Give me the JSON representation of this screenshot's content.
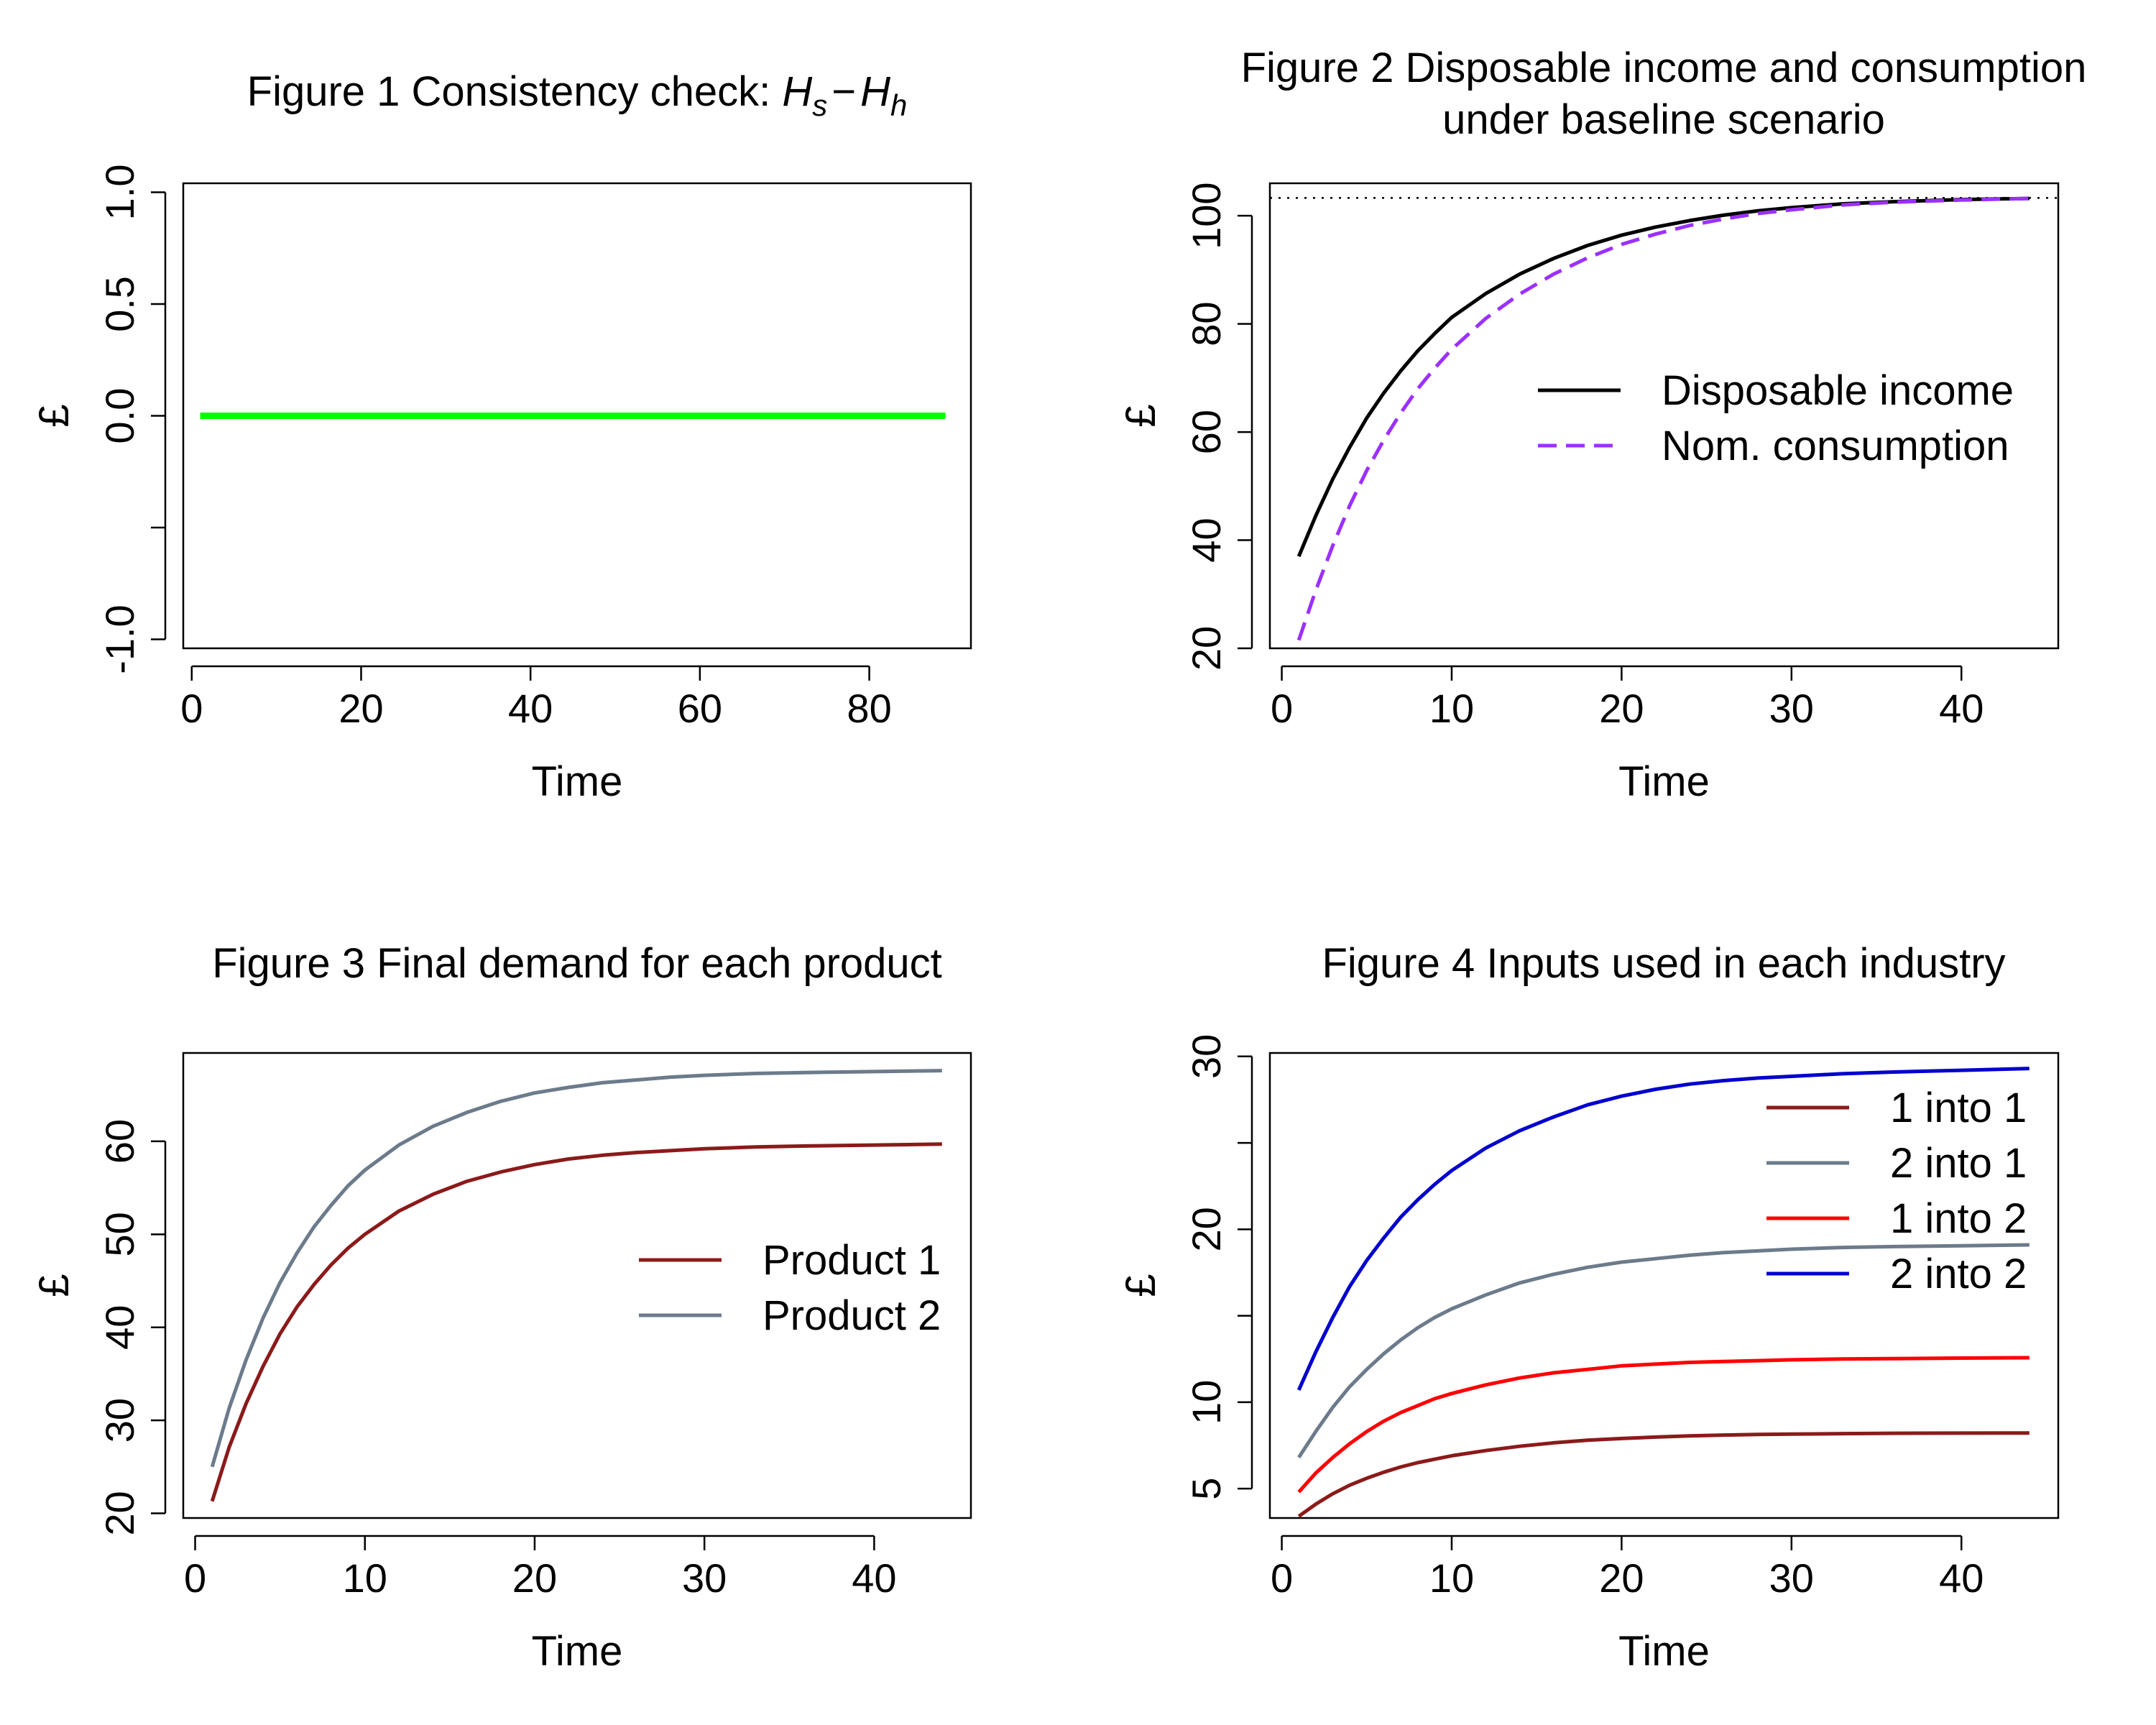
{
  "chart_data": [
    {
      "id": "fig1",
      "type": "line",
      "title": "Figure 1  Consistency check: ",
      "title_math": {
        "base1": "H",
        "sub1": "s",
        "op": "−",
        "base2": "H",
        "sub2": "h"
      },
      "xlabel": "Time",
      "ylabel": "£",
      "xlim": [
        -1,
        92
      ],
      "ylim": [
        -1.04,
        1.04
      ],
      "xticks": [
        0,
        20,
        40,
        60,
        80
      ],
      "yticks": [
        -1.0,
        -0.5,
        0.0,
        0.5,
        1.0
      ],
      "yticklabels": [
        "-1.0",
        "",
        "0.0",
        "0.5",
        "1.0"
      ],
      "legend": null,
      "series": [
        {
          "color": "#00ff00",
          "dash": "",
          "width": 9,
          "x": [
            1,
            89
          ],
          "y": [
            0,
            0
          ]
        }
      ]
    },
    {
      "id": "fig2",
      "type": "line",
      "title_lines": [
        "Figure 2  Disposable income and consumption",
        "under baseline scenario"
      ],
      "xlabel": "Time",
      "ylabel": "£",
      "xlim": [
        -0.7,
        45.7
      ],
      "ylim": [
        20,
        106
      ],
      "xticks": [
        0,
        10,
        20,
        30,
        40
      ],
      "yticks": [
        20,
        40,
        60,
        80,
        100
      ],
      "yticklabels": [
        "20",
        "40",
        "60",
        "80",
        "100"
      ],
      "reference_line": {
        "y": 103.3,
        "color": "#000000",
        "dash": "3 9"
      },
      "legend": {
        "position": "right"
      },
      "series": [
        {
          "name": "Disposable income",
          "color": "#000000",
          "dash": "",
          "width": 5,
          "x": [
            1,
            2,
            3,
            4,
            5,
            6,
            7,
            8,
            9,
            10,
            12,
            14,
            16,
            18,
            20,
            22,
            24,
            26,
            28,
            30,
            33,
            36,
            40,
            44
          ],
          "y": [
            37.0,
            44.5,
            51.3,
            57.2,
            62.6,
            67.2,
            71.3,
            75.0,
            78.2,
            81.2,
            85.6,
            89.2,
            92.1,
            94.5,
            96.4,
            97.9,
            99.1,
            100.1,
            100.9,
            101.5,
            102.2,
            102.6,
            103.0,
            103.2
          ]
        },
        {
          "name": "Nom. consumption",
          "color": "#9b30ff",
          "dash": "26 13",
          "width": 5,
          "x": [
            1,
            2,
            3,
            4,
            5,
            6,
            7,
            8,
            9,
            10,
            12,
            14,
            16,
            18,
            20,
            22,
            24,
            26,
            28,
            30,
            33,
            36,
            40,
            44
          ],
          "y": [
            21.5,
            30.7,
            39.0,
            46.4,
            52.9,
            58.5,
            63.5,
            68.0,
            71.8,
            75.3,
            81.0,
            85.5,
            89.2,
            92.2,
            94.7,
            96.6,
            98.2,
            99.4,
            100.4,
            101.1,
            102.0,
            102.5,
            102.9,
            103.2
          ]
        }
      ]
    },
    {
      "id": "fig3",
      "type": "line",
      "title": "Figure 3  Final demand for each product",
      "xlabel": "Time",
      "ylabel": "£",
      "xlim": [
        -0.7,
        45.7
      ],
      "ylim": [
        19.5,
        69.5
      ],
      "xticks": [
        0,
        10,
        20,
        30,
        40
      ],
      "yticks": [
        20,
        30,
        40,
        50,
        60
      ],
      "yticklabels": [
        "20",
        "30",
        "40",
        "50",
        "60"
      ],
      "legend": {
        "position": "right"
      },
      "series": [
        {
          "name": "Product 1",
          "color": "#8b1a1a",
          "dash": "",
          "width": 5,
          "x": [
            1,
            2,
            3,
            4,
            5,
            6,
            7,
            8,
            9,
            10,
            12,
            14,
            16,
            18,
            20,
            22,
            24,
            26,
            28,
            30,
            33,
            36,
            40,
            44
          ],
          "y": [
            21.3,
            27.1,
            31.8,
            35.8,
            39.3,
            42.2,
            44.6,
            46.7,
            48.5,
            50.0,
            52.5,
            54.3,
            55.7,
            56.7,
            57.5,
            58.1,
            58.5,
            58.8,
            59.0,
            59.2,
            59.4,
            59.5,
            59.6,
            59.7
          ]
        },
        {
          "name": "Product 2",
          "color": "#6c7b8b",
          "dash": "",
          "width": 5,
          "x": [
            1,
            2,
            3,
            4,
            5,
            6,
            7,
            8,
            9,
            10,
            12,
            14,
            16,
            18,
            20,
            22,
            24,
            26,
            28,
            30,
            33,
            36,
            40,
            44
          ],
          "y": [
            25.0,
            31.3,
            36.5,
            41.0,
            44.8,
            48.0,
            50.8,
            53.1,
            55.2,
            56.9,
            59.6,
            61.6,
            63.1,
            64.3,
            65.2,
            65.8,
            66.3,
            66.6,
            66.9,
            67.1,
            67.3,
            67.4,
            67.5,
            67.6
          ]
        }
      ]
    },
    {
      "id": "fig4",
      "type": "line",
      "title": "Figure 4  Inputs used in each industry",
      "xlabel": "Time",
      "ylabel": "£",
      "xlim": [
        -0.7,
        45.7
      ],
      "ylim": [
        3.3,
        30.2
      ],
      "xticks": [
        0,
        10,
        20,
        30,
        40
      ],
      "yticks": [
        5,
        10,
        15,
        20,
        25,
        30
      ],
      "yticklabels": [
        "5",
        "10",
        "",
        "20",
        "",
        "30"
      ],
      "legend": {
        "position": "top-right"
      },
      "series": [
        {
          "name": "1 into 1",
          "color": "#8b1a1a",
          "dash": "",
          "width": 5,
          "x": [
            1,
            2,
            3,
            4,
            5,
            6,
            7,
            8,
            9,
            10,
            12,
            14,
            16,
            18,
            20,
            22,
            24,
            26,
            28,
            30,
            33,
            36,
            40,
            44
          ],
          "y": [
            3.4,
            4.1,
            4.7,
            5.2,
            5.6,
            5.95,
            6.25,
            6.5,
            6.7,
            6.9,
            7.2,
            7.45,
            7.65,
            7.8,
            7.9,
            7.98,
            8.05,
            8.1,
            8.13,
            8.15,
            8.18,
            8.2,
            8.21,
            8.22
          ]
        },
        {
          "name": "2 into 1",
          "color": "#6c7b8b",
          "dash": "",
          "width": 5,
          "x": [
            1,
            2,
            3,
            4,
            5,
            6,
            7,
            8,
            9,
            10,
            12,
            14,
            16,
            18,
            20,
            22,
            24,
            26,
            28,
            30,
            33,
            36,
            40,
            44
          ],
          "y": [
            6.8,
            8.3,
            9.7,
            10.9,
            11.9,
            12.8,
            13.6,
            14.3,
            14.9,
            15.4,
            16.2,
            16.9,
            17.4,
            17.8,
            18.1,
            18.3,
            18.5,
            18.65,
            18.75,
            18.85,
            18.95,
            19.0,
            19.05,
            19.1
          ]
        },
        {
          "name": "1 into 2",
          "color": "#ff0000",
          "dash": "",
          "width": 5,
          "x": [
            1,
            2,
            3,
            4,
            5,
            6,
            7,
            8,
            9,
            10,
            12,
            14,
            16,
            18,
            20,
            22,
            24,
            26,
            28,
            30,
            33,
            36,
            40,
            44
          ],
          "y": [
            4.8,
            5.9,
            6.8,
            7.6,
            8.3,
            8.9,
            9.4,
            9.8,
            10.2,
            10.5,
            11.0,
            11.4,
            11.7,
            11.9,
            12.1,
            12.2,
            12.3,
            12.35,
            12.4,
            12.45,
            12.5,
            12.52,
            12.55,
            12.57
          ]
        },
        {
          "name": "2 into 2",
          "color": "#0000cd",
          "dash": "",
          "width": 5,
          "x": [
            1,
            2,
            3,
            4,
            5,
            6,
            7,
            8,
            9,
            10,
            12,
            14,
            16,
            18,
            20,
            22,
            24,
            26,
            28,
            30,
            33,
            36,
            40,
            44
          ],
          "y": [
            10.7,
            12.9,
            14.9,
            16.7,
            18.2,
            19.5,
            20.7,
            21.7,
            22.6,
            23.4,
            24.7,
            25.7,
            26.5,
            27.2,
            27.7,
            28.1,
            28.4,
            28.6,
            28.75,
            28.85,
            29.0,
            29.1,
            29.2,
            29.3
          ]
        }
      ]
    }
  ]
}
